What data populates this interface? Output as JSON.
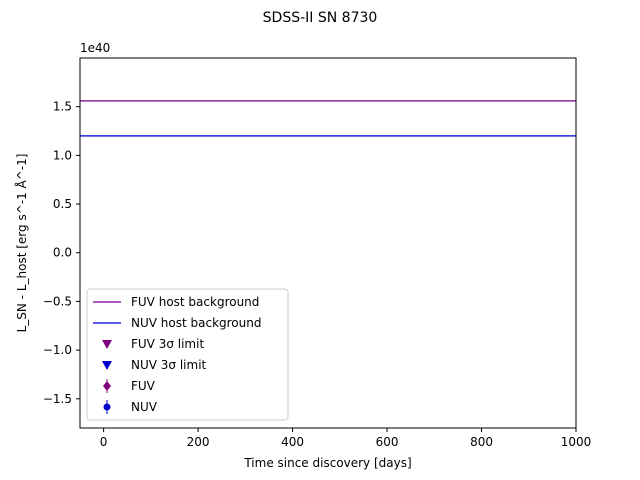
{
  "chart_data": {
    "type": "line",
    "title": "SDSS-II SN 8730",
    "xlabel": "Time since discovery [days]",
    "ylabel": "L_SN - L_host [erg s^-1 Å^-1]",
    "offset_label": "1e40",
    "xlim": [
      -50,
      1000
    ],
    "ylim": [
      -1.8e+40,
      2e+40
    ],
    "x_ticks": [
      0,
      200,
      400,
      600,
      800,
      1000
    ],
    "x_tick_labels": [
      "0",
      "200",
      "400",
      "600",
      "800",
      "1000"
    ],
    "y_ticks": [
      -1.5e+40,
      -1e+40,
      -5e+39,
      0,
      5e+39,
      1e+40,
      1.5e+40
    ],
    "y_tick_labels": [
      "−1.5",
      "−1.0",
      "−0.5",
      "0.0",
      "0.5",
      "1.0",
      "1.5"
    ],
    "grid": false,
    "legend_position": "lower-left",
    "series": [
      {
        "name": "FUV host background",
        "kind": "hline",
        "y": 1.56e+40,
        "color": "#8e24aa"
      },
      {
        "name": "NUV host background",
        "kind": "hline",
        "y": 1.2e+40,
        "color": "#2222dd"
      },
      {
        "name": "FUV 3σ limit",
        "kind": "upper-limit",
        "x": [],
        "y": [],
        "color": "#800080"
      },
      {
        "name": "NUV 3σ limit",
        "kind": "upper-limit",
        "x": [],
        "y": [],
        "color": "#0000cc"
      },
      {
        "name": "FUV",
        "kind": "errorbar",
        "x": [],
        "y": [],
        "color": "#800080"
      },
      {
        "name": "NUV",
        "kind": "errorbar",
        "x": [],
        "y": [],
        "color": "#0000cc"
      }
    ]
  }
}
